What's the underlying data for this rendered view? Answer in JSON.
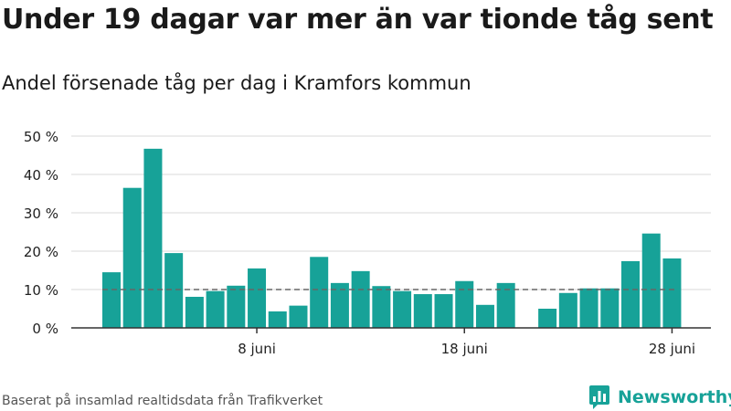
{
  "title": "Under 19 dagar var mer än var tionde tåg sent",
  "subtitle": "Andel försenade tåg per dag i Kramfors kommun",
  "footer": "Baserat på insamlad realtidsdata från Trafikverket",
  "logo_text": "Newsworthy",
  "colors": {
    "bar": "#17a298",
    "grid": "#d9d9d9",
    "axis": "#333333",
    "reference": "#666666",
    "logo": "#17a298"
  },
  "chart_data": {
    "type": "bar",
    "title": "Under 19 dagar var mer än var tionde tåg sent",
    "subtitle": "Andel försenade tåg per dag i Kramfors kommun",
    "xlabel": "",
    "ylabel": "",
    "x": [
      "1 juni",
      "2 juni",
      "3 juni",
      "4 juni",
      "5 juni",
      "6 juni",
      "7 juni",
      "8 juni",
      "9 juni",
      "10 juni",
      "11 juni",
      "12 juni",
      "13 juni",
      "14 juni",
      "15 juni",
      "16 juni",
      "17 juni",
      "18 juni",
      "19 juni",
      "20 juni",
      "21 juni",
      "22 juni",
      "23 juni",
      "24 juni",
      "25 juni",
      "26 juni",
      "27 juni",
      "28 juni",
      "29 juni"
    ],
    "values": [
      14.5,
      36.5,
      46.7,
      19.5,
      8.1,
      9.6,
      11.0,
      15.5,
      4.3,
      5.8,
      18.5,
      11.7,
      14.8,
      10.9,
      9.6,
      8.8,
      8.8,
      12.2,
      6.0,
      11.7,
      null,
      5.0,
      9.1,
      10.3,
      10.3,
      17.4,
      24.6,
      18.1,
      null
    ],
    "unit": "%",
    "ylim": [
      0,
      50
    ],
    "yticks": [
      0,
      10,
      20,
      30,
      40,
      50
    ],
    "ytick_labels": [
      "0 %",
      "10 %",
      "20 %",
      "30 %",
      "40 %",
      "50 %"
    ],
    "xticks": [
      "8 juni",
      "18 juni",
      "28 juni"
    ],
    "reference_line": 10,
    "grid": true
  }
}
